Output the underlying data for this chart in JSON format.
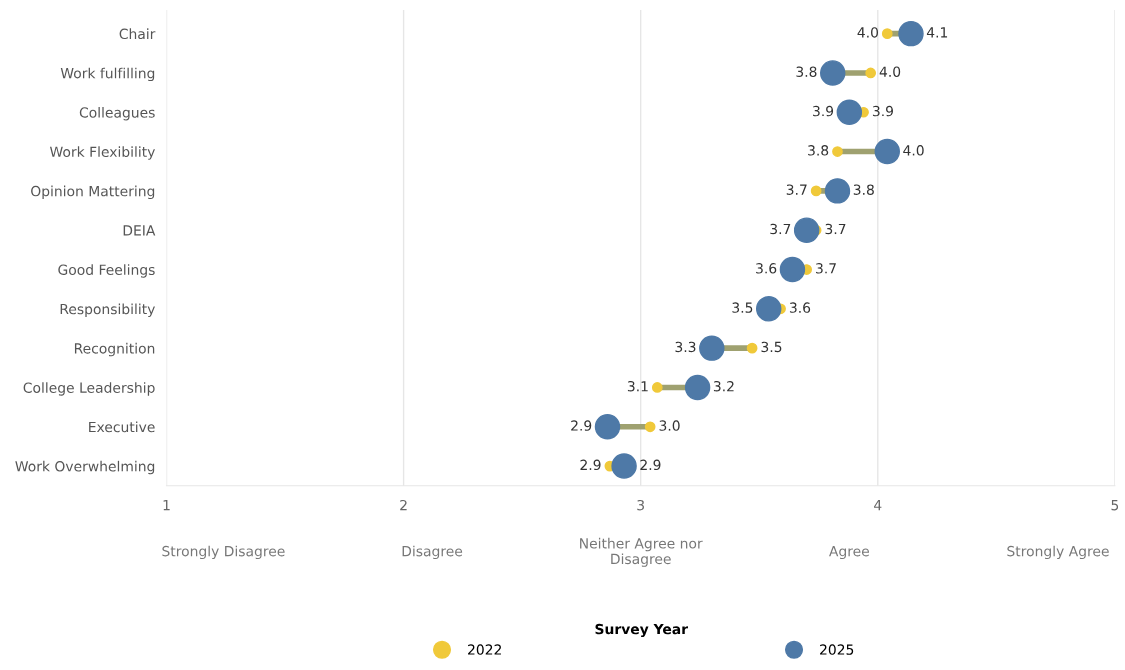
{
  "chart_data": {
    "type": "scatter",
    "orientation": "horizontal",
    "categories": [
      "Chair",
      "Work fulfilling",
      "Colleagues",
      "Work Flexibility",
      "Opinion Mattering",
      "DEIA",
      "Good Feelings",
      "Responsibility",
      "Recognition",
      "College Leadership",
      "Executive",
      "Work Overwhelming"
    ],
    "series": [
      {
        "name": "2022",
        "color": "#f0c93a",
        "values": [
          4.04,
          3.97,
          3.94,
          3.83,
          3.74,
          3.74,
          3.7,
          3.59,
          3.47,
          3.07,
          3.04,
          2.87
        ],
        "value_labels": [
          "4.0",
          "4.0",
          "3.9",
          "3.8",
          "3.7",
          "3.7",
          "3.7",
          "3.6",
          "3.5",
          "3.1",
          "3.0",
          "2.9"
        ]
      },
      {
        "name": "2025",
        "color": "#4e79a7",
        "values": [
          4.14,
          3.81,
          3.88,
          4.04,
          3.83,
          3.7,
          3.64,
          3.54,
          3.3,
          3.24,
          2.86,
          2.93
        ],
        "value_labels": [
          "4.1",
          "3.8",
          "3.9",
          "4.0",
          "3.8",
          "3.7",
          "3.6",
          "3.5",
          "3.3",
          "3.2",
          "2.9",
          "2.9"
        ]
      }
    ],
    "xlim": [
      1,
      5
    ],
    "xticks": [
      1,
      2,
      3,
      4,
      5
    ],
    "grid": "x",
    "marker": "circle",
    "legend": "bottom",
    "legend_title": "Survey Year",
    "annotations": [
      "Strongly Disagree",
      "Disagree",
      "Neither Agree nor\nDisagree",
      "Agree",
      "Strongly Agree"
    ]
  }
}
